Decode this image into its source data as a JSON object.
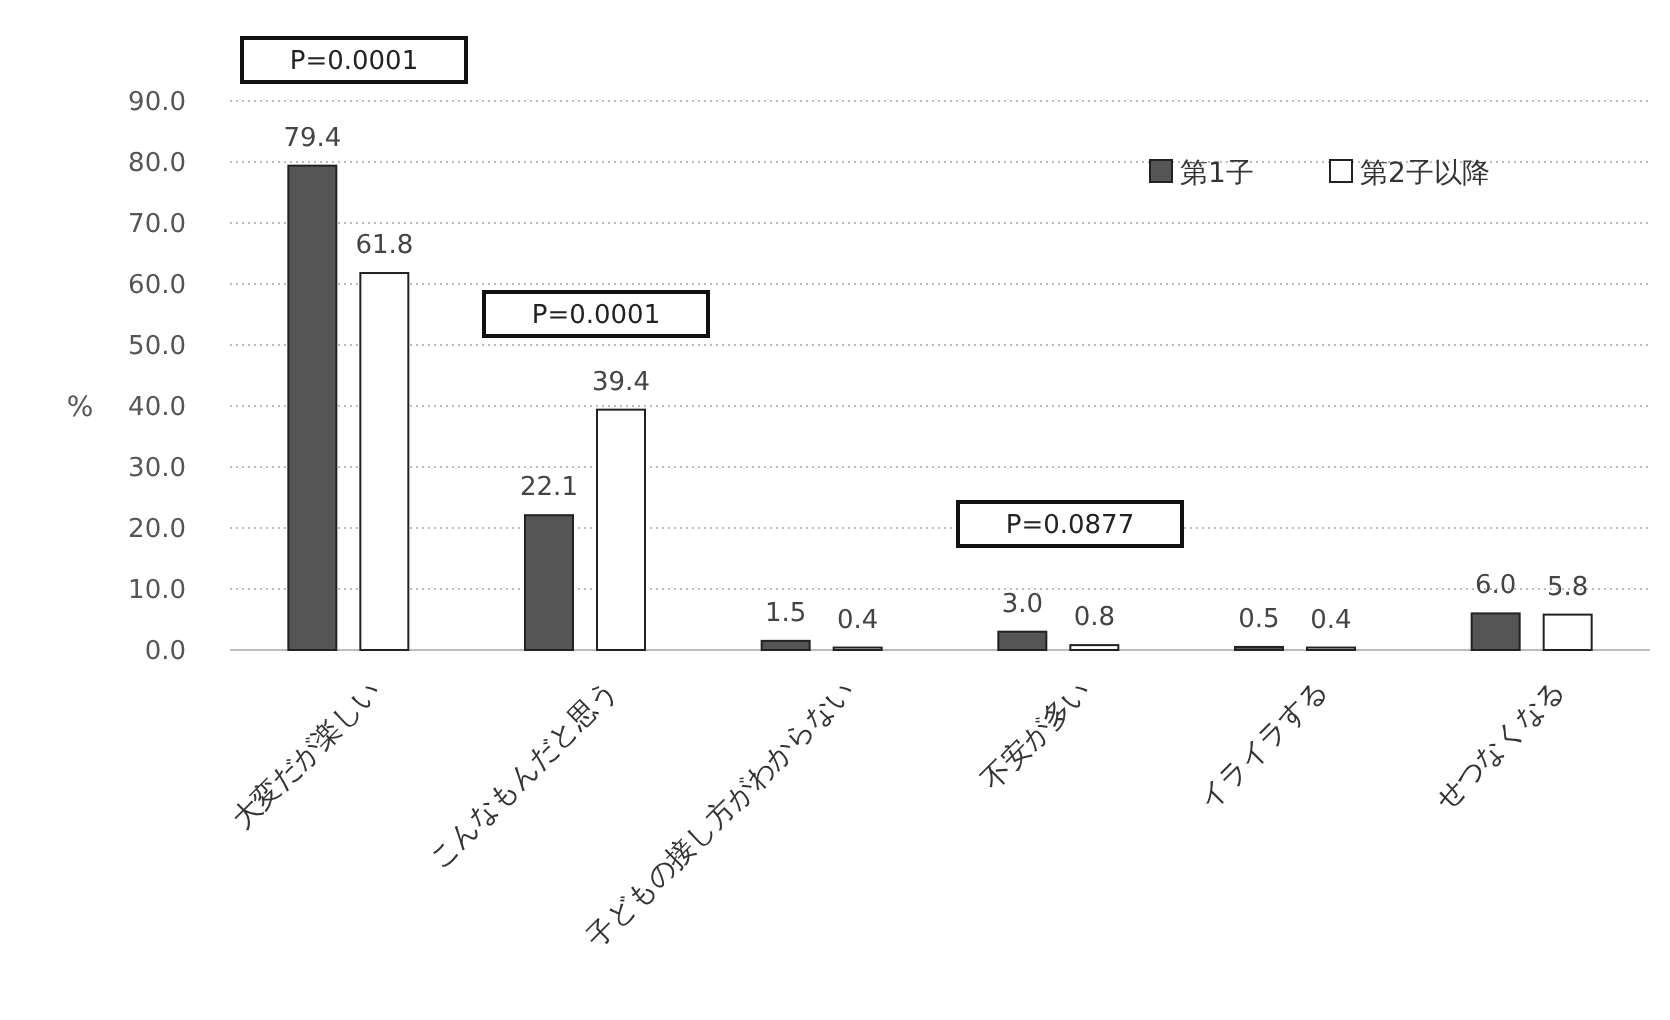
{
  "chart_data": {
    "type": "bar",
    "ylabel": "%",
    "categories": [
      "大変だが楽しい",
      "こんなもんだと思う",
      "子どもの接し方がわからない",
      "不安が多い",
      "イライラする",
      "せつなくなる"
    ],
    "series": [
      {
        "name": "第1子",
        "color": "#555555",
        "values": [
          79.4,
          22.1,
          1.5,
          3.0,
          0.5,
          6.0
        ],
        "value_labels": [
          "79.4",
          "22.1",
          "1.5",
          "3.0",
          "0.5",
          "6.0"
        ]
      },
      {
        "name": "第2子以降",
        "color": "#ffffff",
        "values": [
          61.8,
          39.4,
          0.4,
          0.8,
          0.4,
          5.8
        ],
        "value_labels": [
          "61.8",
          "39.4",
          "0.4",
          "0.8",
          "0.4",
          "5.8"
        ]
      }
    ],
    "ylim": [
      0,
      100
    ],
    "yticks": [
      {
        "value": 0,
        "label": "0.0"
      },
      {
        "value": 10,
        "label": "10.0"
      },
      {
        "value": 20,
        "label": "20.0"
      },
      {
        "value": 30,
        "label": "30.0"
      },
      {
        "value": 40,
        "label": "40.0"
      },
      {
        "value": 50,
        "label": "50.0"
      },
      {
        "value": 60,
        "label": "60.0"
      },
      {
        "value": 70,
        "label": "70.0"
      },
      {
        "value": 80,
        "label": "80.0"
      },
      {
        "value": 90,
        "label": "90.0"
      }
    ],
    "annotations": [
      "P=0.0001",
      "P=0.0001",
      "P=0.0877"
    ],
    "grid": "y",
    "legend": "top right"
  }
}
